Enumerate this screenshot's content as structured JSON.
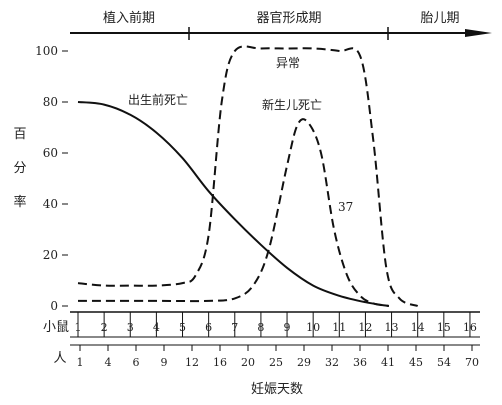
{
  "chart_data": {
    "type": "line",
    "phases": [
      "植入前期",
      "器官形成期",
      "胎儿期"
    ],
    "ylabel": [
      "百",
      "分",
      "率"
    ],
    "y_ticks": [
      0,
      20,
      40,
      60,
      80,
      100
    ],
    "ylim": [
      0,
      105
    ],
    "x_row1_label": "小鼠",
    "x_row1_ticks": [
      "1",
      "2",
      "3",
      "4",
      "5",
      "6",
      "7",
      "8",
      "9",
      "10",
      "11",
      "12",
      "13",
      "14",
      "15",
      "16"
    ],
    "x_row2_label": "人",
    "x_row2_ticks": [
      "1",
      "4",
      "6",
      "9",
      "12",
      "16",
      "20",
      "25",
      "29",
      "32",
      "36",
      "41",
      "45",
      "54",
      "70"
    ],
    "xlabel": "妊娠天数",
    "annotation": "37",
    "series": [
      {
        "name": "出生前死亡",
        "style": "solid",
        "x": [
          1,
          2,
          3,
          4,
          5,
          6,
          7,
          8,
          9,
          10,
          11,
          12,
          12.9
        ],
        "y": [
          80,
          79,
          75,
          68,
          58,
          45,
          34,
          24,
          15,
          8,
          4,
          1.5,
          0
        ]
      },
      {
        "name": "异常",
        "style": "dashed",
        "x": [
          1,
          2,
          3,
          4,
          5,
          5.5,
          6,
          6.5,
          7,
          8,
          9,
          10,
          11,
          11.8,
          12.3,
          12.8,
          13.3,
          14
        ],
        "y": [
          9,
          8,
          8,
          8,
          9,
          12,
          28,
          80,
          100,
          101,
          101,
          101,
          100,
          98,
          65,
          15,
          3,
          0
        ]
      },
      {
        "name": "新生儿死亡",
        "style": "dashed",
        "x": [
          1,
          4,
          6,
          7,
          7.7,
          8.3,
          9,
          9.4,
          9.8,
          10.3,
          10.8,
          11.3,
          11.8,
          12.3,
          12.9
        ],
        "y": [
          2,
          2,
          2,
          3,
          8,
          22,
          55,
          71,
          72,
          60,
          30,
          12,
          4,
          1,
          0
        ]
      }
    ]
  }
}
